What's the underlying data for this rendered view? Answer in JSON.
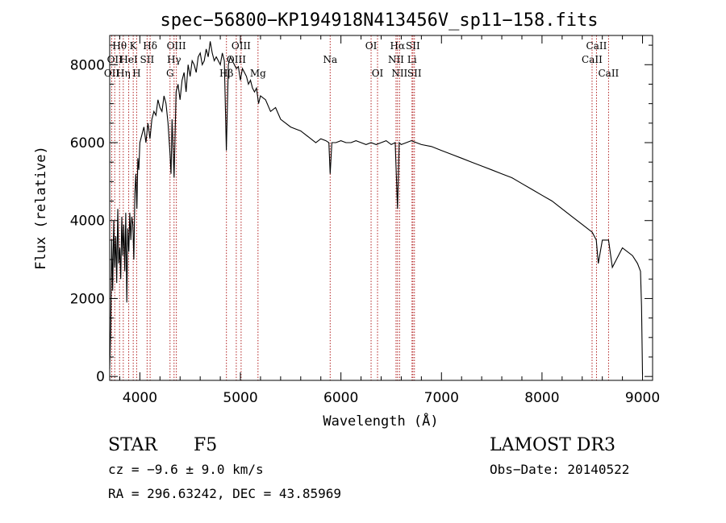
{
  "chart_data": {
    "type": "line",
    "title": "spec−56800−KP194918N413456V_sp11−158.fits",
    "xlabel": "Wavelength (Å)",
    "ylabel": "Flux (relative)",
    "xlim": [
      3700,
      9100
    ],
    "ylim": [
      -100,
      8750
    ],
    "xticks": [
      4000,
      5000,
      6000,
      7000,
      8000,
      9000
    ],
    "yticks": [
      0,
      2000,
      4000,
      6000,
      8000
    ],
    "grid": false,
    "series": [
      {
        "name": "flux",
        "x": [
          3700,
          3710,
          3720,
          3730,
          3740,
          3750,
          3760,
          3770,
          3780,
          3790,
          3800,
          3810,
          3820,
          3830,
          3840,
          3850,
          3860,
          3870,
          3880,
          3890,
          3900,
          3910,
          3920,
          3930,
          3940,
          3950,
          3960,
          3970,
          3980,
          3990,
          4000,
          4020,
          4040,
          4060,
          4080,
          4100,
          4120,
          4140,
          4160,
          4180,
          4200,
          4220,
          4240,
          4260,
          4280,
          4300,
          4310,
          4320,
          4340,
          4360,
          4380,
          4400,
          4420,
          4440,
          4460,
          4480,
          4500,
          4520,
          4540,
          4560,
          4580,
          4600,
          4620,
          4640,
          4660,
          4680,
          4700,
          4720,
          4740,
          4760,
          4780,
          4800,
          4820,
          4840,
          4860,
          4880,
          4900,
          4920,
          4940,
          4960,
          4980,
          5000,
          5020,
          5040,
          5060,
          5080,
          5100,
          5120,
          5140,
          5160,
          5180,
          5200,
          5250,
          5300,
          5350,
          5400,
          5450,
          5500,
          5550,
          5600,
          5650,
          5700,
          5750,
          5800,
          5850,
          5880,
          5893,
          5910,
          5950,
          6000,
          6050,
          6100,
          6150,
          6200,
          6250,
          6300,
          6350,
          6400,
          6450,
          6500,
          6540,
          6563,
          6580,
          6600,
          6650,
          6700,
          6750,
          6800,
          6900,
          7000,
          7100,
          7200,
          7300,
          7400,
          7500,
          7600,
          7700,
          7800,
          7900,
          8000,
          8100,
          8200,
          8300,
          8400,
          8500,
          8540,
          8560,
          8600,
          8662,
          8700,
          8800,
          8900,
          8950,
          8980,
          8990,
          9000
        ],
        "y": [
          200,
          1200,
          3500,
          2200,
          4000,
          2800,
          3600,
          2400,
          4300,
          2900,
          3300,
          2500,
          4100,
          3100,
          3900,
          2700,
          4200,
          1900,
          3800,
          3200,
          4200,
          3500,
          4100,
          3900,
          3000,
          4700,
          5200,
          4300,
          5600,
          5300,
          6000,
          6200,
          6400,
          6000,
          6500,
          6100,
          6600,
          6800,
          6700,
          7100,
          6900,
          6800,
          7200,
          7000,
          6500,
          5700,
          5200,
          6600,
          5100,
          7300,
          7500,
          7100,
          7600,
          7800,
          7300,
          8000,
          7700,
          8100,
          8000,
          7800,
          8200,
          8300,
          8000,
          8100,
          8400,
          8200,
          8600,
          8300,
          8100,
          8200,
          8100,
          8000,
          8300,
          8100,
          5800,
          8000,
          8200,
          8100,
          8000,
          7900,
          7950,
          7600,
          7900,
          7800,
          7700,
          7500,
          7600,
          7400,
          7300,
          7400,
          7000,
          7200,
          7100,
          6800,
          6900,
          6600,
          6500,
          6400,
          6350,
          6300,
          6200,
          6100,
          6000,
          6100,
          6050,
          6000,
          5200,
          6000,
          6000,
          6050,
          6000,
          6000,
          6050,
          6000,
          5950,
          6000,
          5950,
          6000,
          6050,
          5950,
          6000,
          4300,
          6000,
          5950,
          6000,
          6050,
          6000,
          5950,
          5900,
          5800,
          5700,
          5600,
          5500,
          5400,
          5300,
          5200,
          5100,
          4950,
          4800,
          4650,
          4500,
          4300,
          4100,
          3900,
          3700,
          3500,
          2900,
          3500,
          3500,
          2800,
          3300,
          3100,
          2900,
          2700,
          1800,
          50
        ]
      }
    ],
    "line_markers": [
      {
        "wavelength": 3720,
        "label": "OII",
        "row": 2,
        "offset": 0
      },
      {
        "wavelength": 3750,
        "label": "OII",
        "row": 1,
        "offset": 0
      },
      {
        "wavelength": 3798,
        "label": "Hθ",
        "row": 0,
        "offset": 0
      },
      {
        "wavelength": 3835,
        "label": "Hη",
        "row": 2,
        "offset": 0
      },
      {
        "wavelength": 3889,
        "label": "HeI",
        "row": 1,
        "offset": 0
      },
      {
        "wavelength": 3934,
        "label": "K",
        "row": 0,
        "offset": 0
      },
      {
        "wavelength": 3968,
        "label": "H",
        "row": 2,
        "offset": 0
      },
      {
        "wavelength": 4072,
        "label": "SII",
        "row": 1,
        "offset": 0
      },
      {
        "wavelength": 4102,
        "label": "Hδ",
        "row": 0,
        "offset": 0
      },
      {
        "wavelength": 4300,
        "label": "G",
        "row": 2,
        "offset": 0
      },
      {
        "wavelength": 4340,
        "label": "Hγ",
        "row": 1,
        "offset": 0
      },
      {
        "wavelength": 4363,
        "label": "OIII",
        "row": 0,
        "offset": 0
      },
      {
        "wavelength": 4861,
        "label": "Hβ",
        "row": 2,
        "offset": 0
      },
      {
        "wavelength": 4959,
        "label": "OIII",
        "row": 1,
        "offset": 0
      },
      {
        "wavelength": 5007,
        "label": "OIII",
        "row": 0,
        "offset": 0
      },
      {
        "wavelength": 5175,
        "label": "Mg",
        "row": 2,
        "offset": 0
      },
      {
        "wavelength": 5893,
        "label": "Na",
        "row": 1,
        "offset": 0
      },
      {
        "wavelength": 6300,
        "label": "OI",
        "row": 0,
        "offset": 0
      },
      {
        "wavelength": 6364,
        "label": "OI",
        "row": 2,
        "offset": 0
      },
      {
        "wavelength": 6548,
        "label": "NII",
        "row": 1,
        "offset": 0
      },
      {
        "wavelength": 6563,
        "label": "Hα",
        "row": 0,
        "offset": 0
      },
      {
        "wavelength": 6583,
        "label": "NII",
        "row": 2,
        "offset": 0
      },
      {
        "wavelength": 6707,
        "label": "Li",
        "row": 1,
        "offset": 0
      },
      {
        "wavelength": 6716,
        "label": "SII",
        "row": 0,
        "offset": 0
      },
      {
        "wavelength": 6731,
        "label": "SII",
        "row": 2,
        "offset": 0
      },
      {
        "wavelength": 8498,
        "label": "CaII",
        "row": 1,
        "offset": 0
      },
      {
        "wavelength": 8542,
        "label": "CaII",
        "row": 0,
        "offset": 0
      },
      {
        "wavelength": 8662,
        "label": "CaII",
        "row": 2,
        "offset": 0
      }
    ]
  },
  "info": {
    "object_class": "STAR",
    "subclass": "F5",
    "survey": "LAMOST DR3",
    "redshift_text": "cz = −9.6 ± 9.0 km/s",
    "obs_date_text": "Obs−Date: 20140522",
    "coords_text": "RA = 296.63242, DEC =  43.85969"
  },
  "colors": {
    "spectrum": "#000000",
    "marker": "#b22222",
    "axis": "#000000"
  }
}
